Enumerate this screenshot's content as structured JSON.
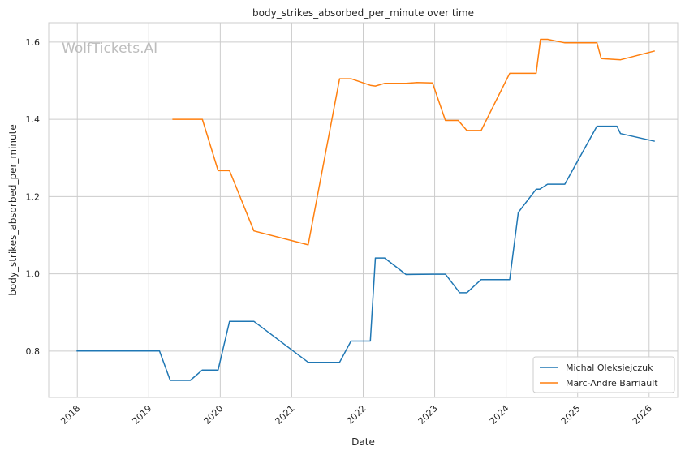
{
  "chart_data": {
    "type": "line",
    "title": "body_strikes_absorbed_per_minute over time",
    "xlabel": "Date",
    "ylabel": "body_strikes_absorbed_per_minute",
    "watermark": "WolfTickets.AI",
    "xlim": [
      2017.6,
      2026.4
    ],
    "ylim": [
      0.68,
      1.65
    ],
    "x_ticks": [
      2018,
      2019,
      2020,
      2021,
      2022,
      2023,
      2024,
      2025,
      2026
    ],
    "x_tick_labels": [
      "2018",
      "2019",
      "2020",
      "2021",
      "2022",
      "2023",
      "2024",
      "2025",
      "2026"
    ],
    "y_ticks": [
      0.8,
      1.0,
      1.2,
      1.4,
      1.6
    ],
    "y_tick_labels": [
      "0.8",
      "1.0",
      "1.2",
      "1.4",
      "1.6"
    ],
    "grid": true,
    "legend_position": "bottom-right",
    "series": [
      {
        "name": "Michal Oleksiejczuk",
        "color": "#1f77b4",
        "x": [
          2017.99,
          2019.15,
          2019.3,
          2019.58,
          2019.75,
          2019.97,
          2020.13,
          2020.47,
          2021.23,
          2021.67,
          2021.83,
          2022.1,
          2022.17,
          2022.3,
          2022.6,
          2022.97,
          2023.15,
          2023.35,
          2023.45,
          2023.65,
          2024.05,
          2024.17,
          2024.42,
          2024.47,
          2024.58,
          2024.82,
          2025.27,
          2025.55,
          2025.6,
          2026.08
        ],
        "y": [
          0.8,
          0.8,
          0.724,
          0.724,
          0.751,
          0.751,
          0.877,
          0.877,
          0.771,
          0.771,
          0.826,
          0.826,
          1.041,
          1.041,
          0.998,
          0.999,
          0.999,
          0.951,
          0.951,
          0.985,
          0.985,
          1.159,
          1.219,
          1.219,
          1.232,
          1.232,
          1.382,
          1.382,
          1.363,
          1.343
        ]
      },
      {
        "name": "Marc-Andre Barriault",
        "color": "#ff7f0e",
        "x": [
          2019.33,
          2019.75,
          2019.97,
          2020.13,
          2020.47,
          2021.23,
          2021.67,
          2021.83,
          2022.1,
          2022.17,
          2022.3,
          2022.6,
          2022.75,
          2022.97,
          2023.15,
          2023.33,
          2023.45,
          2023.65,
          2024.05,
          2024.42,
          2024.48,
          2024.58,
          2024.82,
          2025.27,
          2025.33,
          2025.6,
          2026.08
        ],
        "y": [
          1.4,
          1.4,
          1.267,
          1.267,
          1.111,
          1.075,
          1.505,
          1.505,
          1.488,
          1.486,
          1.493,
          1.493,
          1.495,
          1.494,
          1.397,
          1.397,
          1.371,
          1.371,
          1.519,
          1.519,
          1.607,
          1.607,
          1.598,
          1.598,
          1.557,
          1.554,
          1.577
        ]
      }
    ]
  }
}
